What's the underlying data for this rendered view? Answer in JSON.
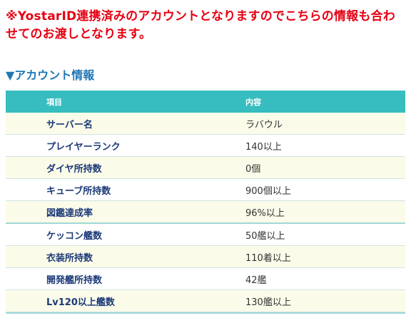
{
  "notice": {
    "text": "※YostarID連携済みのアカウントとなりますのでこちらの情報も合わせてのお渡しとなります。"
  },
  "section": {
    "title": "▼アカウント情報"
  },
  "table": {
    "headers": [
      "項目",
      "内容"
    ],
    "rows": [
      {
        "key": "サーバー名",
        "value": "ラバウル"
      },
      {
        "key": "プレイヤーランク",
        "value": "140以上"
      },
      {
        "key": "ダイヤ所持数",
        "value": "0個"
      },
      {
        "key": "キューブ所持数",
        "value": "900個以上"
      },
      {
        "key": "図鑑達成率",
        "value": "96%以上"
      },
      {
        "key": "ケッコン艦数",
        "value": "50艦以上"
      },
      {
        "key": "衣装所持数",
        "value": "110着以上"
      },
      {
        "key": "開発艦所持数",
        "value": "42艦"
      },
      {
        "key": "Lv120以上艦数",
        "value": "130艦以上"
      }
    ]
  },
  "colors": {
    "notice": "#e60012",
    "section_title": "#1f77b4",
    "header_bg": "#37bdbf",
    "row_alt_bg": "#fbfbe9",
    "key_text": "#1c3a78"
  }
}
